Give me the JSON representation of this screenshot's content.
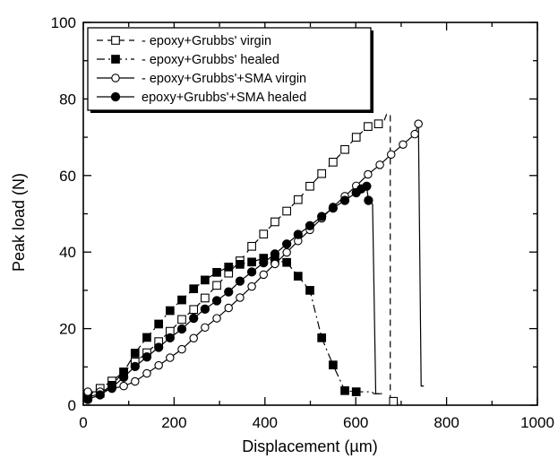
{
  "chart_data": {
    "type": "line",
    "title": "",
    "xlabel": "Displacement (µm)",
    "ylabel": "Peak load (N)",
    "xlim": [
      0,
      1000
    ],
    "ylim": [
      0,
      100
    ],
    "xticks": [
      0,
      200,
      400,
      600,
      800,
      1000
    ],
    "yticks": [
      0,
      20,
      40,
      60,
      80,
      100
    ],
    "legend_position": "top-left",
    "grid": false,
    "series": [
      {
        "name": "- epoxy+Grubbs' virgin",
        "marker": "open-square",
        "dash": "dash",
        "x": [
          10,
          37,
          63,
          89,
          114,
          140,
          166,
          191,
          217,
          243,
          268,
          294,
          320,
          345,
          371,
          397,
          422,
          448,
          473,
          499,
          525,
          550,
          576,
          601,
          627,
          650,
          655,
          663,
          668,
          676,
          676,
          683,
          688,
          693
        ],
        "y": [
          2.5,
          4.4,
          6.3,
          8.7,
          11.3,
          13.7,
          16.6,
          19.3,
          22.4,
          25,
          28,
          31.3,
          34.5,
          37.7,
          41.5,
          44.7,
          47.9,
          50.7,
          53.7,
          57.2,
          60.5,
          63.5,
          66.8,
          70,
          72.8,
          73.5,
          74.5,
          74.5,
          76,
          76,
          2,
          1,
          0.5,
          0.5
        ]
      },
      {
        "name": "- epoxy+Grubbs' healed",
        "marker": "filled-square",
        "dash": "dash-dot",
        "x": [
          10,
          37,
          63,
          89,
          114,
          140,
          166,
          191,
          217,
          243,
          268,
          294,
          320,
          345,
          371,
          397,
          422,
          448,
          473,
          499,
          525,
          550,
          576,
          601,
          614,
          635,
          640,
          652
        ],
        "y": [
          2,
          3.1,
          5.2,
          8.7,
          13.6,
          17.7,
          21.2,
          24.7,
          27.5,
          30.4,
          32.7,
          34.7,
          36.1,
          36.8,
          37.4,
          38.4,
          37.8,
          37.3,
          33.7,
          30,
          17.6,
          10.5,
          3.8,
          3.5,
          3.5,
          3.5,
          3,
          3
        ]
      },
      {
        "name": "- epoxy+Grubbs'+SMA virgin",
        "marker": "open-circle",
        "dash": "solid",
        "x": [
          10,
          37,
          63,
          89,
          114,
          140,
          166,
          191,
          217,
          243,
          268,
          294,
          320,
          345,
          371,
          397,
          422,
          448,
          473,
          499,
          525,
          550,
          576,
          601,
          627,
          653,
          678,
          704,
          730,
          738,
          744,
          750
        ],
        "y": [
          3.5,
          3.5,
          4.3,
          5,
          6.2,
          8.3,
          10.4,
          12.4,
          14.6,
          17.5,
          20.3,
          22.7,
          25.4,
          28.1,
          31,
          34.1,
          36.9,
          39.9,
          42.9,
          45.8,
          48.8,
          51.8,
          54.6,
          57.3,
          60.3,
          62.8,
          65.5,
          68.1,
          70.8,
          73.5,
          5,
          5
        ]
      },
      {
        "name": "epoxy+Grubbs'+SMA healed",
        "marker": "filled-circle",
        "dash": "solid",
        "x": [
          10,
          37,
          63,
          89,
          114,
          140,
          166,
          191,
          217,
          243,
          268,
          294,
          320,
          345,
          371,
          397,
          422,
          448,
          473,
          499,
          525,
          550,
          576,
          601,
          612,
          624,
          628,
          637,
          644,
          658
        ],
        "y": [
          1.5,
          2.7,
          4.6,
          7.3,
          10.1,
          12.6,
          15.1,
          17.6,
          19.9,
          22.7,
          25.1,
          27.3,
          29.6,
          32.4,
          34.8,
          37.2,
          39.5,
          42.1,
          44.6,
          46.9,
          49.3,
          51.5,
          53.5,
          55.5,
          56.5,
          57.2,
          53.5,
          52.5,
          3,
          3
        ]
      }
    ]
  }
}
